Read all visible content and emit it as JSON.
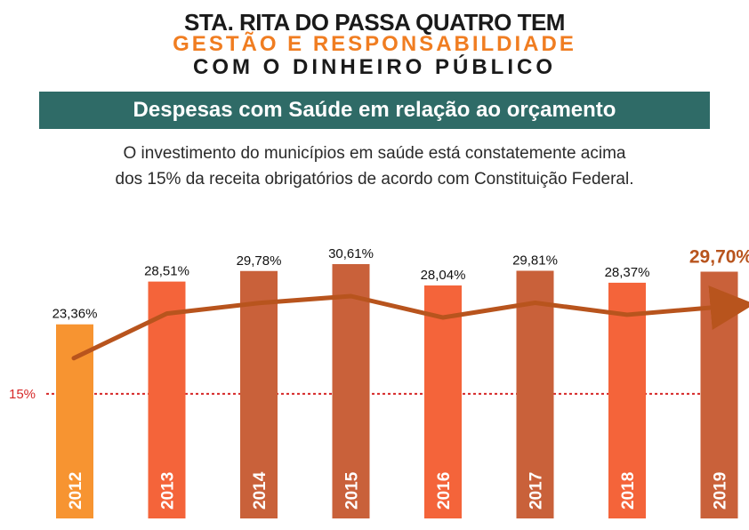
{
  "header": {
    "line1": "STA. RITA DO PASSA QUATRO TEM",
    "line2": "GESTÃO E RESPONSABILDIADE",
    "line3": "COM O DINHEIRO PÚBLICO"
  },
  "banner": {
    "title": "Despesas com Saúde em relação ao orçamento"
  },
  "description": {
    "line1": "O investimento do municípios em saúde está constatemente acima",
    "line2": "dos 15% da receita obrigatórios de acordo com Constituição Federal."
  },
  "colors": {
    "header_dark": "#1a1a1a",
    "header_accent": "#f07d21",
    "banner": "#2f6b67",
    "bar_first": "#f79431",
    "bar_bright": "#f4643a",
    "bar_dark": "#c9613a",
    "trend": "#b8541d",
    "highlight_label": "#b8541d",
    "reference_line": "#d62828"
  },
  "chart_data": {
    "type": "bar",
    "categories": [
      "2012",
      "2013",
      "2014",
      "2015",
      "2016",
      "2017",
      "2018",
      "2019"
    ],
    "values": [
      23.36,
      28.51,
      29.78,
      30.61,
      28.04,
      29.81,
      28.37,
      29.7
    ],
    "data_labels": [
      "23,36%",
      "28,51%",
      "29,78%",
      "30,61%",
      "28,04%",
      "29,81%",
      "28,37%",
      "29,70%"
    ],
    "bar_colors": [
      "bar_first",
      "bar_bright",
      "bar_dark",
      "bar_dark",
      "bar_bright",
      "bar_dark",
      "bar_bright",
      "bar_dark"
    ],
    "highlight_index": 7,
    "reference_line": {
      "value": 15,
      "label": "15%"
    },
    "trend_arrow": true,
    "y_axis_visible": false,
    "grid": false,
    "legend": "none",
    "title": "Despesas com Saúde em relação ao orçamento",
    "xlabel": "",
    "ylabel": ""
  }
}
